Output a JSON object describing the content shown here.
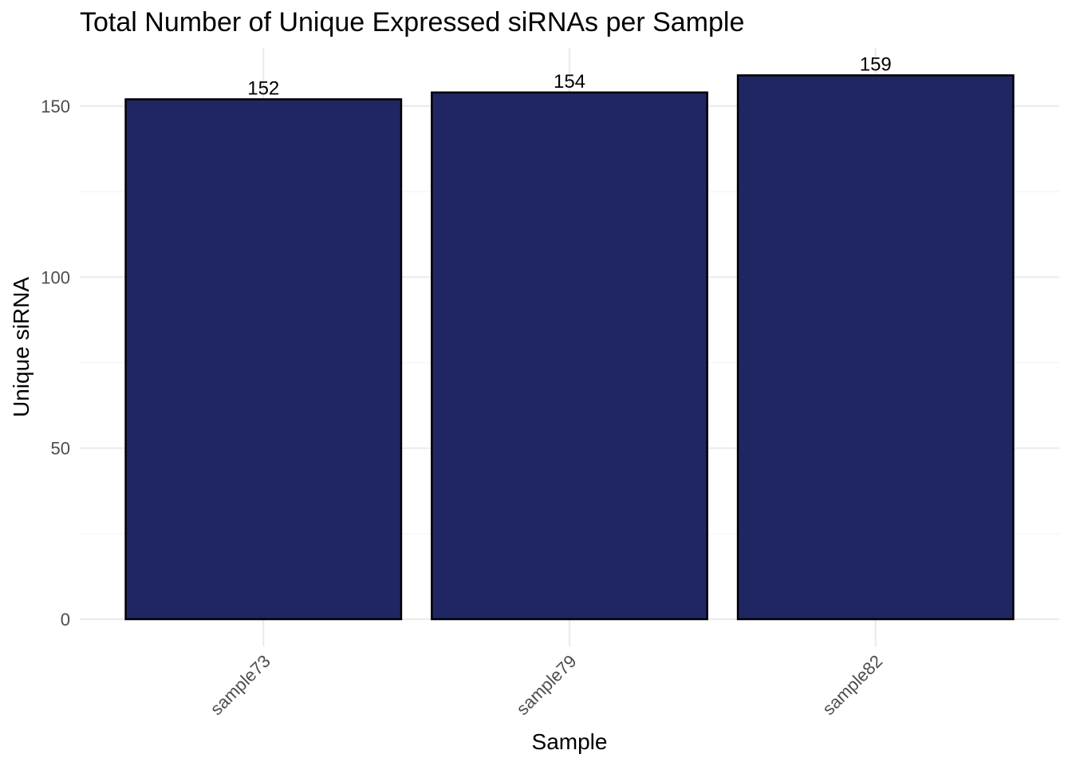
{
  "chart_data": {
    "type": "bar",
    "title": "Total Number of Unique Expressed siRNAs per Sample",
    "xlabel": "Sample",
    "ylabel": "Unique siRNA",
    "categories": [
      "sample73",
      "sample79",
      "sample82"
    ],
    "values": [
      152,
      154,
      159
    ],
    "data_labels": [
      "152",
      "154",
      "159"
    ],
    "ylim": [
      0,
      166
    ],
    "yticks": [
      0,
      50,
      100,
      150
    ],
    "ytick_labels": [
      "0",
      "50",
      "100",
      "150"
    ],
    "y_minor_ticks": [
      25,
      75,
      125
    ],
    "grid": true,
    "legend": "none",
    "bar_color": "#1f2662",
    "bar_outline": "#000000",
    "x_tick_rotation_deg": 45
  }
}
